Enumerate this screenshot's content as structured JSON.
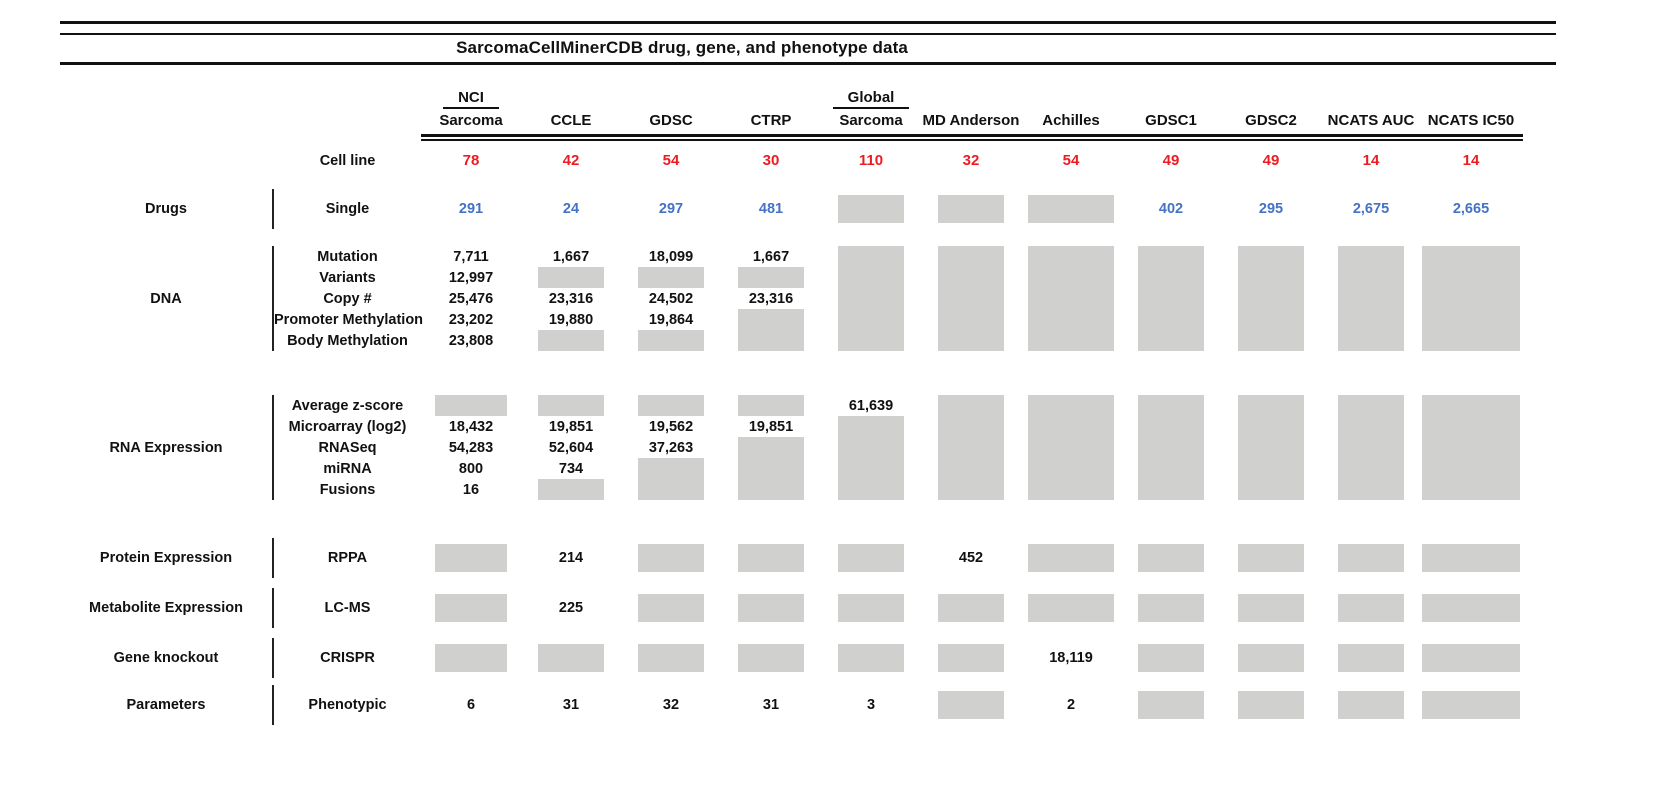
{
  "title": "SarcomaCellMinerCDB drug, gene, and phenotype data",
  "colors": {
    "red": "#ec1c24",
    "blue": "#4472c4",
    "black": "#111111",
    "no_data_gray": "#d0d0ce"
  },
  "columns": [
    {
      "id": "nci-sarcoma",
      "top": "NCI",
      "label": "Sarcoma"
    },
    {
      "id": "ccle",
      "label": "CCLE"
    },
    {
      "id": "gdsc",
      "label": "GDSC"
    },
    {
      "id": "ctrp",
      "label": "CTRP"
    },
    {
      "id": "global-sarcoma",
      "top": "Global",
      "label": "Sarcoma"
    },
    {
      "id": "md-anderson",
      "label": "MD Anderson"
    },
    {
      "id": "achilles",
      "label": "Achilles"
    },
    {
      "id": "gdsc1",
      "label": "GDSC1"
    },
    {
      "id": "gdsc2",
      "label": "GDSC2"
    },
    {
      "id": "ncats-auc",
      "label": "NCATS AUC"
    },
    {
      "id": "ncats-ic50",
      "label": "NCATS IC50"
    }
  ],
  "cell_line": {
    "label": "Cell line",
    "values": [
      "78",
      "42",
      "54",
      "30",
      "110",
      "32",
      "54",
      "49",
      "49",
      "14",
      "14"
    ]
  },
  "sections": [
    {
      "id": "drugs",
      "category": "Drugs",
      "rows": [
        {
          "label": "Single",
          "color": "blue",
          "cells": [
            "291",
            "24",
            "297",
            "481",
            null,
            null,
            null,
            "402",
            "295",
            "2,675",
            "2,665"
          ]
        }
      ]
    },
    {
      "id": "dna",
      "category": "DNA",
      "rows": [
        {
          "label": "Mutation",
          "cells": [
            "7,711",
            "1,667",
            "18,099",
            "1,667",
            null,
            null,
            null,
            null,
            null,
            null,
            null
          ]
        },
        {
          "label": "Variants",
          "cells": [
            "12,997",
            null,
            null,
            null,
            null,
            null,
            null,
            null,
            null,
            null,
            null
          ]
        },
        {
          "label": "Copy #",
          "cells": [
            "25,476",
            "23,316",
            "24,502",
            "23,316",
            null,
            null,
            null,
            null,
            null,
            null,
            null
          ]
        },
        {
          "label": "Promoter Methylation",
          "cells": [
            "23,202",
            "19,880",
            "19,864",
            null,
            null,
            null,
            null,
            null,
            null,
            null,
            null
          ]
        },
        {
          "label": "Body Methylation",
          "cells": [
            "23,808",
            null,
            null,
            null,
            null,
            null,
            null,
            null,
            null,
            null,
            null
          ]
        }
      ]
    },
    {
      "id": "rna-expression",
      "category": "RNA Expression",
      "rows": [
        {
          "label": "Average z-score",
          "cells": [
            null,
            null,
            null,
            null,
            "61,639",
            null,
            null,
            null,
            null,
            null,
            null
          ]
        },
        {
          "label": "Microarray (log2)",
          "cells": [
            "18,432",
            "19,851",
            "19,562",
            "19,851",
            null,
            null,
            null,
            null,
            null,
            null,
            null
          ]
        },
        {
          "label": "RNASeq",
          "cells": [
            "54,283",
            "52,604",
            "37,263",
            null,
            null,
            null,
            null,
            null,
            null,
            null,
            null
          ]
        },
        {
          "label": "miRNA",
          "cells": [
            "800",
            "734",
            null,
            null,
            null,
            null,
            null,
            null,
            null,
            null,
            null
          ]
        },
        {
          "label": "Fusions",
          "cells": [
            "16",
            null,
            null,
            null,
            null,
            null,
            null,
            null,
            null,
            null,
            null
          ]
        }
      ]
    },
    {
      "id": "protein-expression",
      "category": "Protein Expression",
      "rows": [
        {
          "label": "RPPA",
          "cells": [
            null,
            "214",
            null,
            null,
            null,
            "452",
            null,
            null,
            null,
            null,
            null
          ]
        }
      ]
    },
    {
      "id": "metabolite-expression",
      "category": "Metabolite Expression",
      "rows": [
        {
          "label": "LC-MS",
          "cells": [
            null,
            "225",
            null,
            null,
            null,
            null,
            null,
            null,
            null,
            null,
            null
          ]
        }
      ]
    },
    {
      "id": "gene-knockout",
      "category": "Gene knockout",
      "rows": [
        {
          "label": "CRISPR",
          "cells": [
            null,
            null,
            null,
            null,
            null,
            null,
            "18,119",
            null,
            null,
            null,
            null
          ]
        }
      ]
    },
    {
      "id": "parameters",
      "category": "Parameters",
      "rows": [
        {
          "label": "Phenotypic",
          "cells": [
            "6",
            "31",
            "32",
            "31",
            "3",
            null,
            "2",
            null,
            null,
            null,
            null
          ]
        }
      ]
    }
  ],
  "chart_data": {
    "type": "table",
    "title": "SarcomaCellMinerCDB drug, gene, and phenotype data",
    "columns": [
      "NCI Sarcoma",
      "CCLE",
      "GDSC",
      "CTRP",
      "Global Sarcoma",
      "MD Anderson",
      "Achilles",
      "GDSC1",
      "GDSC2",
      "NCATS AUC",
      "NCATS IC50"
    ],
    "rows": [
      {
        "category": "",
        "measure": "Cell line",
        "values": [
          78,
          42,
          54,
          30,
          110,
          32,
          54,
          49,
          49,
          14,
          14
        ]
      },
      {
        "category": "Drugs",
        "measure": "Single",
        "values": [
          291,
          24,
          297,
          481,
          null,
          null,
          null,
          402,
          295,
          2675,
          2665
        ]
      },
      {
        "category": "DNA",
        "measure": "Mutation",
        "values": [
          7711,
          1667,
          18099,
          1667,
          null,
          null,
          null,
          null,
          null,
          null,
          null
        ]
      },
      {
        "category": "DNA",
        "measure": "Variants",
        "values": [
          12997,
          null,
          null,
          null,
          null,
          null,
          null,
          null,
          null,
          null,
          null
        ]
      },
      {
        "category": "DNA",
        "measure": "Copy #",
        "values": [
          25476,
          23316,
          24502,
          23316,
          null,
          null,
          null,
          null,
          null,
          null,
          null
        ]
      },
      {
        "category": "DNA",
        "measure": "Promoter Methylation",
        "values": [
          23202,
          19880,
          19864,
          null,
          null,
          null,
          null,
          null,
          null,
          null,
          null
        ]
      },
      {
        "category": "DNA",
        "measure": "Body Methylation",
        "values": [
          23808,
          null,
          null,
          null,
          null,
          null,
          null,
          null,
          null,
          null,
          null
        ]
      },
      {
        "category": "RNA Expression",
        "measure": "Average z-score",
        "values": [
          null,
          null,
          null,
          null,
          61639,
          null,
          null,
          null,
          null,
          null,
          null
        ]
      },
      {
        "category": "RNA Expression",
        "measure": "Microarray (log2)",
        "values": [
          18432,
          19851,
          19562,
          19851,
          null,
          null,
          null,
          null,
          null,
          null,
          null
        ]
      },
      {
        "category": "RNA Expression",
        "measure": "RNASeq",
        "values": [
          54283,
          52604,
          37263,
          null,
          null,
          null,
          null,
          null,
          null,
          null,
          null
        ]
      },
      {
        "category": "RNA Expression",
        "measure": "miRNA",
        "values": [
          800,
          734,
          null,
          null,
          null,
          null,
          null,
          null,
          null,
          null,
          null
        ]
      },
      {
        "category": "RNA Expression",
        "measure": "Fusions",
        "values": [
          16,
          null,
          null,
          null,
          null,
          null,
          null,
          null,
          null,
          null,
          null
        ]
      },
      {
        "category": "Protein Expression",
        "measure": "RPPA",
        "values": [
          null,
          214,
          null,
          null,
          null,
          452,
          null,
          null,
          null,
          null,
          null
        ]
      },
      {
        "category": "Metabolite Expression",
        "measure": "LC-MS",
        "values": [
          null,
          225,
          null,
          null,
          null,
          null,
          null,
          null,
          null,
          null,
          null
        ]
      },
      {
        "category": "Gene knockout",
        "measure": "CRISPR",
        "values": [
          null,
          null,
          null,
          null,
          null,
          null,
          18119,
          null,
          null,
          null,
          null
        ]
      },
      {
        "category": "Parameters",
        "measure": "Phenotypic",
        "values": [
          6,
          31,
          32,
          31,
          3,
          null,
          2,
          null,
          null,
          null,
          null
        ]
      }
    ],
    "legend": "gray box = data not available; red = cell line counts; blue = drug counts"
  }
}
